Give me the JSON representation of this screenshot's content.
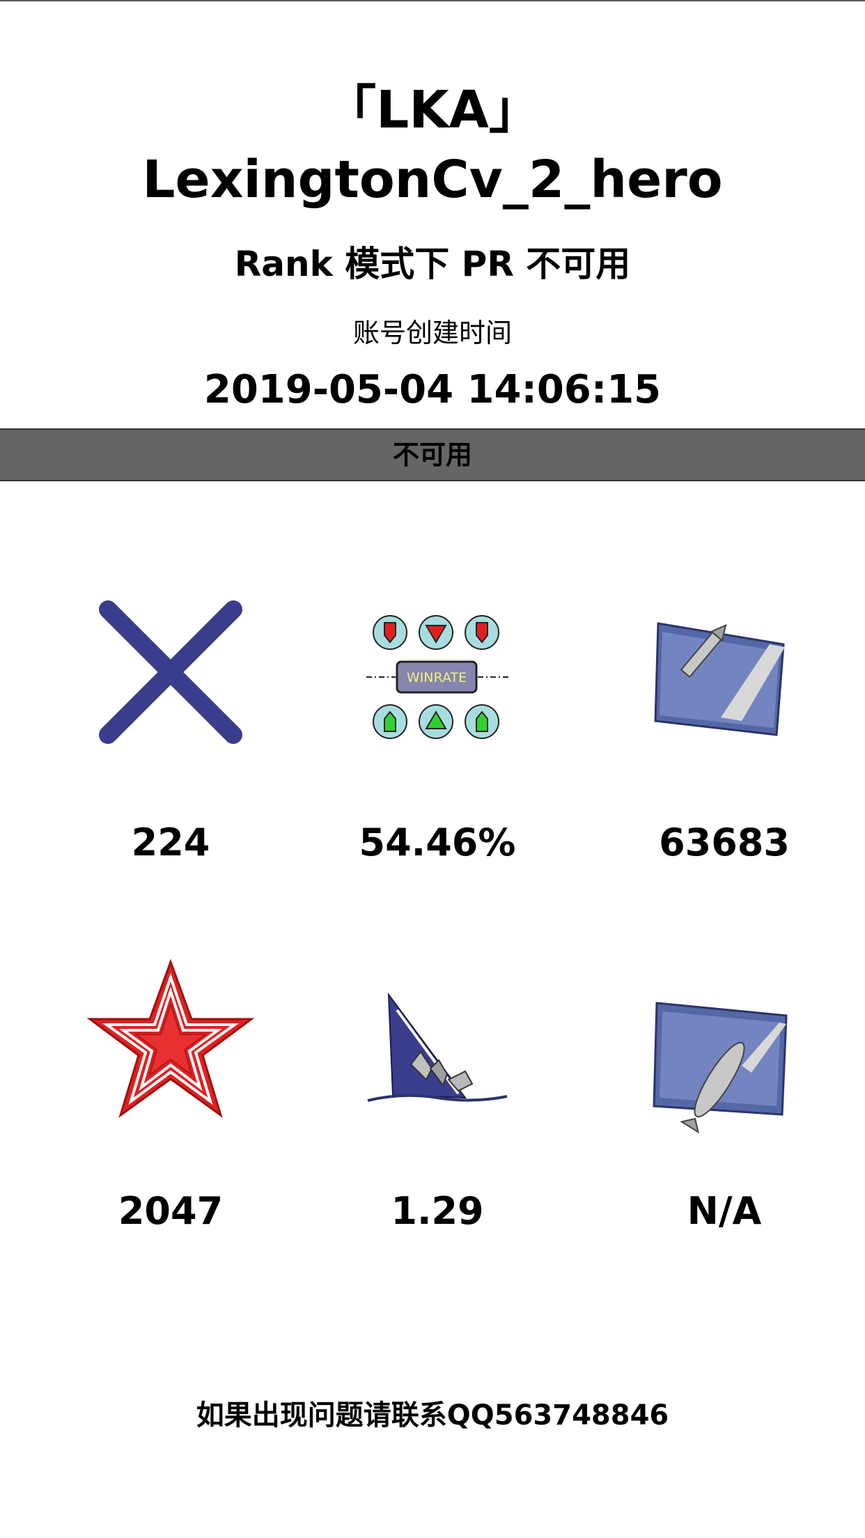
{
  "header": {
    "clan": "「LKA」",
    "player_name": "LexingtonCv_2_hero",
    "rank_note": "Rank 模式下 PR 不可用",
    "created_label": "账号创建时间",
    "created_time": "2019-05-04 14:06:15"
  },
  "status_bar": {
    "label": "不可用"
  },
  "stats": [
    {
      "icon": "battles-cross-icon",
      "value": "224"
    },
    {
      "icon": "winrate-icon",
      "value": "54.46%",
      "icon_text": "WINRATE"
    },
    {
      "icon": "damage-shell-icon",
      "value": "63683"
    },
    {
      "icon": "red-star-icon",
      "value": "2047"
    },
    {
      "icon": "sinking-ship-icon",
      "value": "1.29"
    },
    {
      "icon": "torpedo-icon",
      "value": "N/A"
    }
  ],
  "footer": {
    "text": "如果出现问题请联系QQ563748846"
  },
  "colors": {
    "status_bar": "#656565",
    "cross": "#3a3d8c",
    "star": "#e02020",
    "icon_blue": "#5468a8"
  }
}
